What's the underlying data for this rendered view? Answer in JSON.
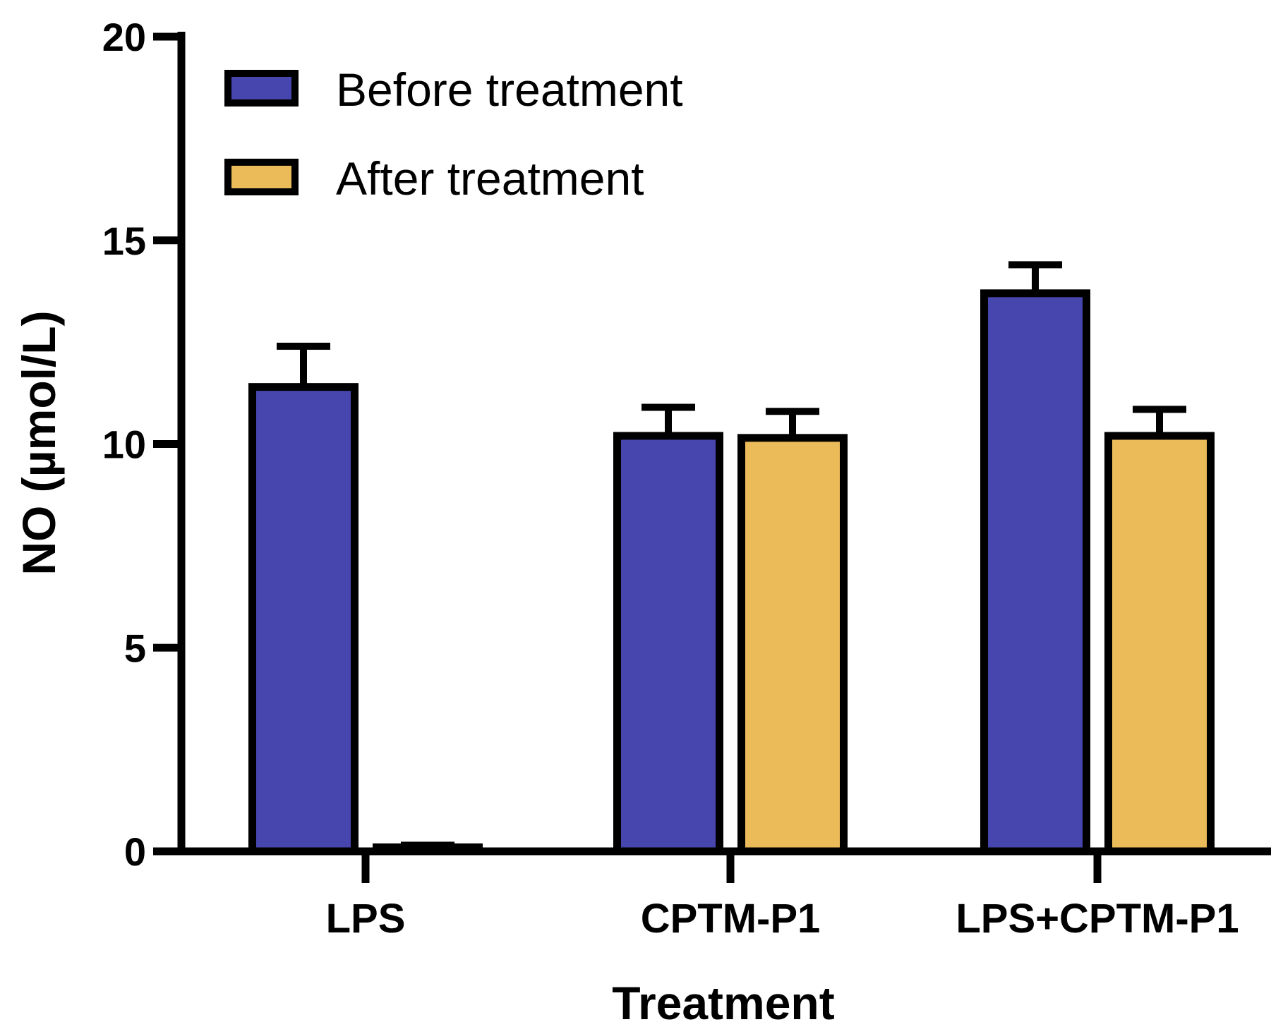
{
  "chart_data": {
    "type": "bar",
    "title": "",
    "xlabel": "Treatment",
    "ylabel": "NO (µmol/L)",
    "ylim": [
      0,
      20
    ],
    "yticks": [
      0,
      5,
      10,
      15,
      20
    ],
    "ytick_labels": [
      "0",
      "5",
      "10",
      "15",
      "20"
    ],
    "categories": [
      "LPS",
      "CPTM-P1",
      "LPS+CPTM-P1"
    ],
    "series": [
      {
        "name": "Before treatment",
        "color": "#4646ae",
        "values": [
          11.4,
          10.2,
          13.7
        ],
        "errors": [
          1.0,
          0.7,
          0.7
        ]
      },
      {
        "name": "After treatment",
        "color": "#ebbb5a",
        "values": [
          0.1,
          10.15,
          10.2
        ],
        "errors": [
          0.05,
          0.65,
          0.65
        ]
      }
    ],
    "legend": {
      "position": "top-left",
      "entries": [
        "Before treatment",
        "After treatment"
      ]
    },
    "grid": false
  }
}
